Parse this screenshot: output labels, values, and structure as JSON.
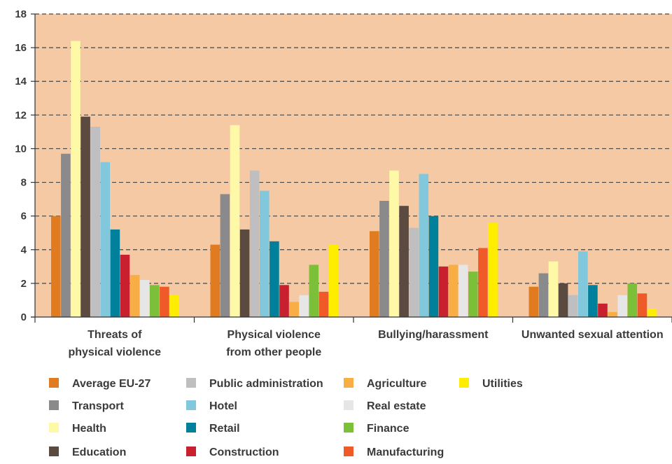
{
  "chart_data": {
    "type": "bar",
    "categories": [
      [
        "Threats of",
        "physical violence"
      ],
      [
        "Physical violence",
        "from other people"
      ],
      [
        "Bullying/harassment"
      ],
      [
        "Unwanted sexual attention"
      ]
    ],
    "ylim": [
      0,
      18
    ],
    "yticks": [
      0,
      2,
      4,
      6,
      8,
      10,
      12,
      14,
      16,
      18
    ],
    "grid": "dashed horizontal",
    "legend_position": "bottom",
    "plot_background": "#f5c9a4",
    "series": [
      {
        "name": "Average EU-27",
        "color": "#e07b20",
        "values": [
          6.0,
          4.3,
          5.1,
          1.8
        ]
      },
      {
        "name": "Transport",
        "color": "#8a8a8c",
        "values": [
          9.7,
          7.3,
          6.9,
          2.6
        ]
      },
      {
        "name": "Health",
        "color": "#fdf9a6",
        "values": [
          16.4,
          11.4,
          8.7,
          3.3
        ]
      },
      {
        "name": "Education",
        "color": "#5a4a40",
        "values": [
          11.9,
          5.2,
          6.6,
          2.0
        ]
      },
      {
        "name": "Public administration",
        "color": "#bfbfc1",
        "values": [
          11.3,
          8.7,
          5.3,
          1.3
        ]
      },
      {
        "name": "Hotel",
        "color": "#82c8dc",
        "values": [
          9.2,
          7.5,
          8.5,
          3.9
        ]
      },
      {
        "name": "Retail",
        "color": "#00809a",
        "values": [
          5.2,
          4.5,
          6.0,
          1.9
        ]
      },
      {
        "name": "Construction",
        "color": "#c8202f",
        "values": [
          3.7,
          1.9,
          3.0,
          0.8
        ]
      },
      {
        "name": "Agriculture",
        "color": "#f8ae44",
        "values": [
          2.5,
          0.9,
          3.1,
          0.3
        ]
      },
      {
        "name": "Real estate",
        "color": "#e6e6e6",
        "values": [
          2.2,
          1.3,
          3.1,
          1.3
        ]
      },
      {
        "name": "Finance",
        "color": "#7cbf38",
        "values": [
          1.9,
          3.1,
          2.7,
          2.0
        ]
      },
      {
        "name": "Manufacturing",
        "color": "#f05a28",
        "values": [
          1.8,
          1.5,
          4.1,
          1.4
        ]
      },
      {
        "name": "Utilities",
        "color": "#ffed00",
        "values": [
          1.3,
          4.3,
          5.6,
          0.5
        ]
      }
    ],
    "legend_columns": [
      [
        "Average EU-27",
        "Transport",
        "Health",
        "Education"
      ],
      [
        "Public administration",
        "Hotel",
        "Retail",
        "Construction"
      ],
      [
        "Agriculture",
        "Real estate",
        "Finance",
        "Manufacturing"
      ],
      [
        "Utilities"
      ]
    ]
  }
}
